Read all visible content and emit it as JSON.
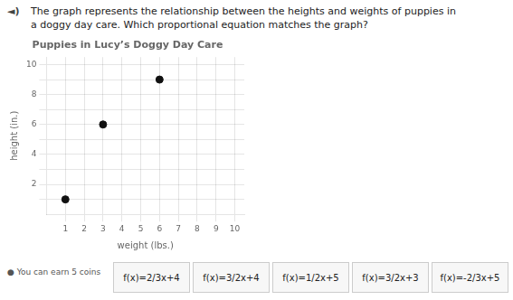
{
  "chart_data": {
    "type": "scatter",
    "title": "Puppies in Lucy’s Doggy Day Care",
    "x_label": "weight (lbs.)",
    "y_label": "height (in.)",
    "x": [
      1,
      3,
      6
    ],
    "values": [
      1,
      6,
      9
    ],
    "color": "#111111",
    "xlim": [
      0,
      10.5
    ],
    "ylim": [
      0,
      10.5
    ],
    "xticks": [
      1,
      2,
      3,
      4,
      5,
      6,
      7,
      8,
      9,
      10
    ],
    "yticks": [
      {
        "value": 1,
        "label": null
      },
      2,
      {
        "value": 3,
        "label": null
      },
      4,
      {
        "value": 5,
        "label": null
      },
      6,
      {
        "value": 7,
        "label": null
      },
      8,
      {
        "value": 9,
        "label": null
      },
      10
    ],
    "grid": true,
    "annotations": {
      "icon": "◄)",
      "question": [
        "The graph represents the relationship between the heights and weights of puppies in",
        "a doggy day care. Which proportional equation matches the graph?"
      ],
      "note": "● You can earn 5 coins",
      "choices": [
        "f(x)=2/3x+4",
        "f(x)=3/2x+4",
        "f(x)=1/2x+5",
        "f(x)=3/2x+3",
        "f(x)=-2/3x+5"
      ]
    }
  }
}
